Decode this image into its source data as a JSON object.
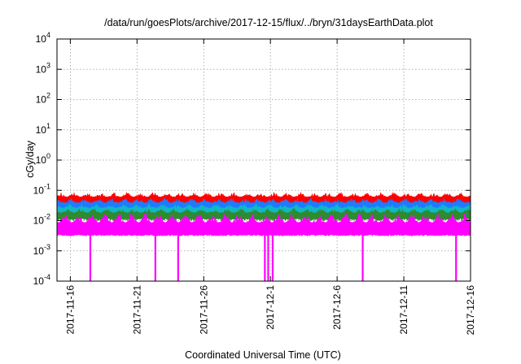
{
  "chart_data": {
    "type": "area",
    "title": "/data/run/goesPlots/archive/2017-12-15/flux/../bryn/31daysEarthData.plot",
    "xlabel": "Coordinated Universal Time (UTC)",
    "ylabel": "cGy/day",
    "yscale": "log",
    "ylim": [
      0.0001,
      10000
    ],
    "yticks": [
      {
        "value": 0.0001,
        "base": "10",
        "exp": "-4"
      },
      {
        "value": 0.001,
        "base": "10",
        "exp": "-3"
      },
      {
        "value": 0.01,
        "base": "10",
        "exp": "-2"
      },
      {
        "value": 0.1,
        "base": "10",
        "exp": "-1"
      },
      {
        "value": 1,
        "base": "10",
        "exp": "0"
      },
      {
        "value": 10,
        "base": "10",
        "exp": "1"
      },
      {
        "value": 100,
        "base": "10",
        "exp": "2"
      },
      {
        "value": 1000,
        "base": "10",
        "exp": "3"
      },
      {
        "value": 10000,
        "base": "10",
        "exp": "4"
      }
    ],
    "xlim": [
      "2017-11-15T00:00",
      "2017-12-16T00:00"
    ],
    "xticks": [
      "2017-11-16",
      "2017-11-21",
      "2017-11-26",
      "2017-12-1",
      "2017-12-6",
      "2017-12-11",
      "2017-12-16"
    ],
    "grid": true,
    "legend": "none",
    "series": [
      {
        "color": "#ff0000",
        "low": 0.04,
        "high": 0.085
      },
      {
        "color": "#1e7bff",
        "low": 0.025,
        "high": 0.055
      },
      {
        "color": "#11b7c4",
        "low": 0.018,
        "high": 0.035
      },
      {
        "color": "#2e8b2e",
        "low": 0.012,
        "high": 0.025
      },
      {
        "color": "#ff00ff",
        "low": 0.0035,
        "high": 0.018
      }
    ],
    "dropouts": [
      {
        "date": "2017-11-17T12:00",
        "to": 0.0001
      },
      {
        "date": "2017-11-22T09:00",
        "to": 0.0001
      },
      {
        "date": "2017-11-24T02:00",
        "to": 0.0001
      },
      {
        "date": "2017-11-30T14:00",
        "to": 0.0001
      },
      {
        "date": "2017-11-30T20:00",
        "to": 0.0001
      },
      {
        "date": "2017-12-01T04:00",
        "to": 0.0001
      },
      {
        "date": "2017-12-07T22:00",
        "to": 0.0001
      },
      {
        "date": "2017-12-14T22:00",
        "to": 0.0001
      }
    ]
  }
}
